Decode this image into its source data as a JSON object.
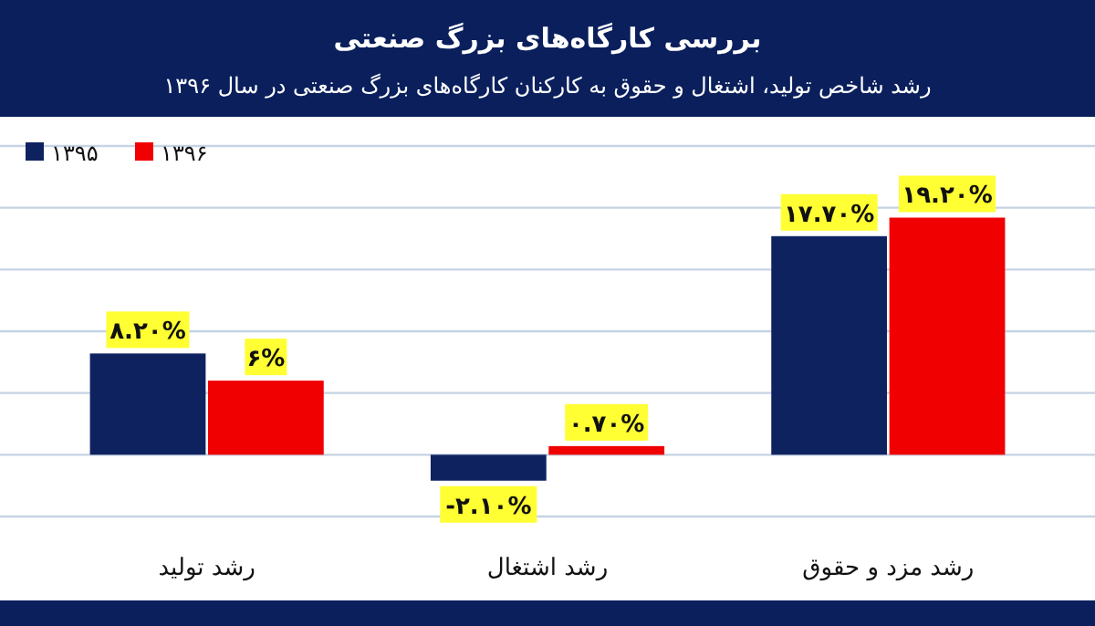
{
  "chart_data": {
    "type": "bar",
    "title": "بررسی کارگاه‌های بزرگ صنعتی",
    "subtitle": "رشد شاخص تولید، اشتغال و حقوق به کارکنان کارگاه‌های بزرگ صنعتی در سال ۱۳۹۶",
    "categories": [
      "رشد تولید",
      "رشد اشتغال",
      "رشد مزد و حقوق"
    ],
    "series": [
      {
        "name": "۱۳۹۵",
        "color": "#0f2260",
        "values": [
          8.2,
          -2.1,
          17.7
        ],
        "value_labels": [
          "۸.۲۰%",
          "-۲.۱۰%",
          "۱۷.۷۰%"
        ]
      },
      {
        "name": "۱۳۹۶",
        "color": "#f00000",
        "values": [
          6,
          0.7,
          19.2
        ],
        "value_labels": [
          "۶%",
          "۰.۷۰%",
          "۱۹.۲۰%"
        ]
      }
    ],
    "ylim": [
      -5,
      25
    ],
    "yticks": [
      {
        "value": -5,
        "label": null
      },
      {
        "value": 0,
        "label": null
      },
      {
        "value": 5,
        "label": null
      },
      {
        "value": 10,
        "label": null
      },
      {
        "value": 15,
        "label": null
      },
      {
        "value": 20,
        "label": null
      },
      {
        "value": 25,
        "label": null
      }
    ],
    "grid": "y",
    "legend": "top left",
    "tick_labels": "x"
  }
}
